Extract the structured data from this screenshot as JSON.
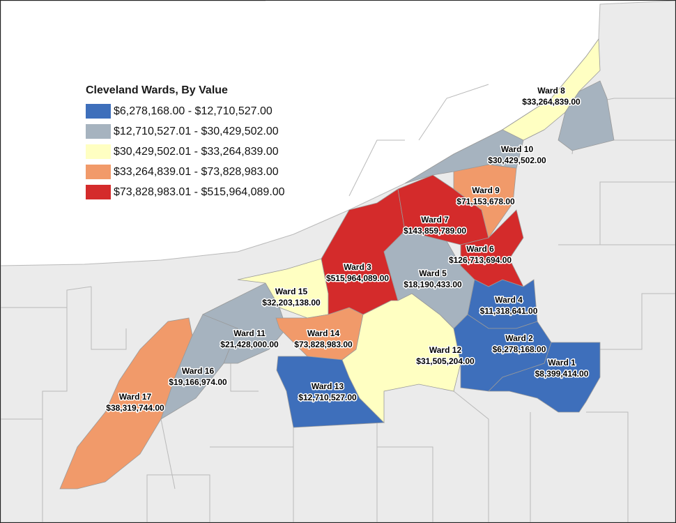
{
  "title": "Cleveland Wards, By Value",
  "colors": {
    "class1": "#3e6fbb",
    "class2": "#a6b3bf",
    "class3": "#ffffc2",
    "class4": "#f19a6a",
    "class5": "#d42b2b",
    "background_land": "#ebebeb",
    "water": "#ffffff"
  },
  "legend": [
    {
      "label": "$6,278,168.00 - $12,710,527.00",
      "color": "#3e6fbb"
    },
    {
      "label": "$12,710,527.01 - $30,429,502.00",
      "color": "#a6b3bf"
    },
    {
      "label": "$30,429,502.01 - $33,264,839.00",
      "color": "#ffffc2"
    },
    {
      "label": "$33,264,839.01 - $73,828,983.00",
      "color": "#f19a6a"
    },
    {
      "label": "$73,828,983.01 - $515,964,089.00",
      "color": "#d42b2b"
    }
  ],
  "wards": [
    {
      "name": "Ward 1",
      "value": "$8,399,414.00",
      "class": 1
    },
    {
      "name": "Ward 2",
      "value": "$6,278,168.00",
      "class": 1
    },
    {
      "name": "Ward 3",
      "value": "$515,964,089.00",
      "class": 5
    },
    {
      "name": "Ward 4",
      "value": "$11,318,641.00",
      "class": 1
    },
    {
      "name": "Ward 5",
      "value": "$18,190,433.00",
      "class": 2
    },
    {
      "name": "Ward 6",
      "value": "$126,713,694.00",
      "class": 5
    },
    {
      "name": "Ward 7",
      "value": "$143,859,789.00",
      "class": 5
    },
    {
      "name": "Ward 8",
      "value": "$33,264,839.00",
      "class": 3
    },
    {
      "name": "Ward 9",
      "value": "$71,153,678.00",
      "class": 4
    },
    {
      "name": "Ward 10",
      "value": "$30,429,502.00",
      "class": 2
    },
    {
      "name": "Ward 11",
      "value": "$21,428,000.00",
      "class": 2
    },
    {
      "name": "Ward 12",
      "value": "$31,505,204.00",
      "class": 3
    },
    {
      "name": "Ward 13",
      "value": "$12,710,527.00",
      "class": 1
    },
    {
      "name": "Ward 14",
      "value": "$73,828,983.00",
      "class": 4
    },
    {
      "name": "Ward 15",
      "value": "$32,203,138.00",
      "class": 3
    },
    {
      "name": "Ward 16",
      "value": "$19,166,974.00",
      "class": 2
    },
    {
      "name": "Ward 17",
      "value": "$38,319,744.00",
      "class": 4
    }
  ]
}
